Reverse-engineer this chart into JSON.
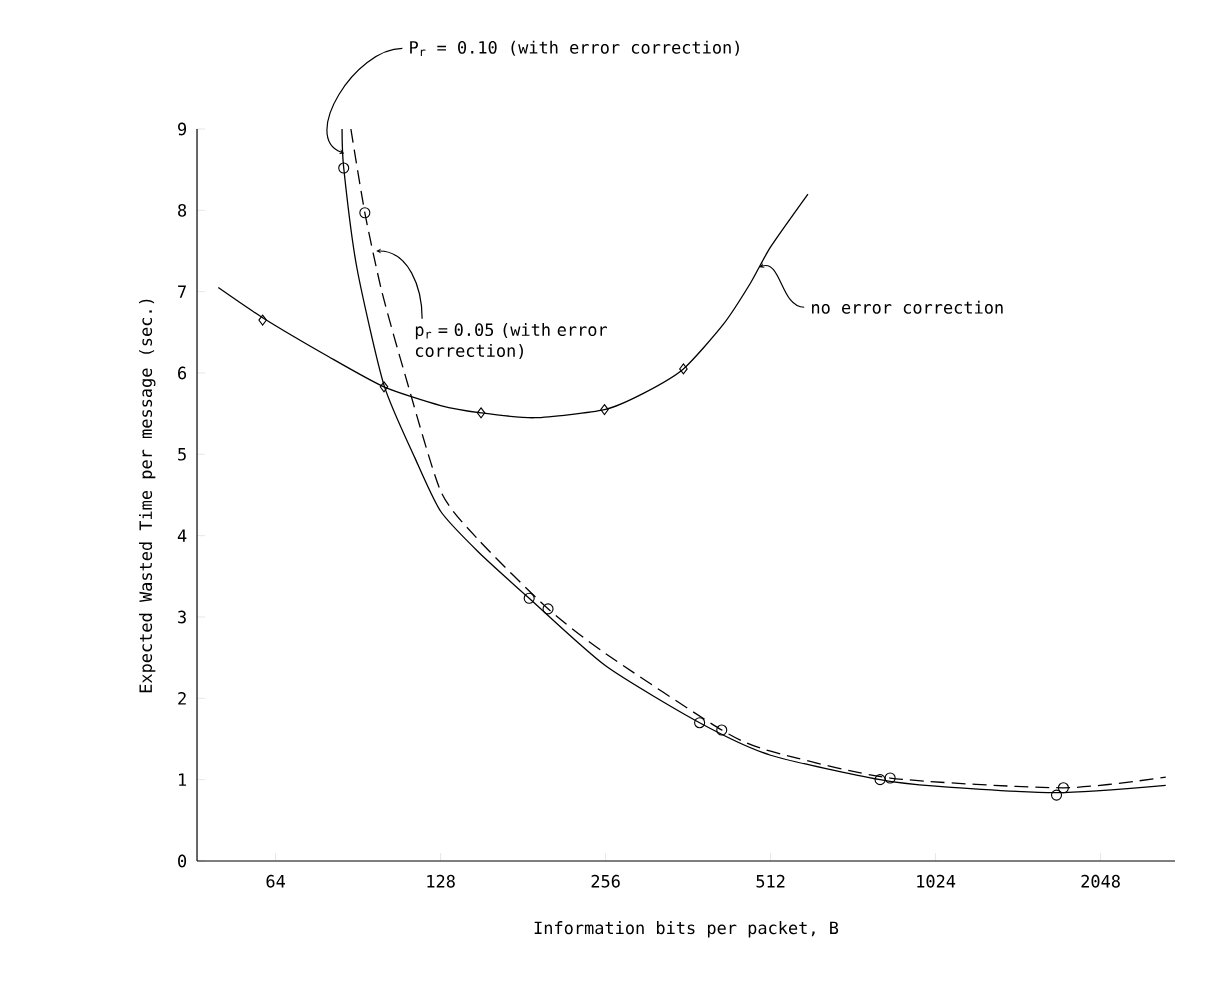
{
  "chart_data": {
    "type": "line",
    "xlabel": "Information bits per packet, B",
    "ylabel": "Expected Wasted Time per message (sec.)",
    "log": "x",
    "xlim": [
      46,
      2800
    ],
    "xticks": [
      64,
      128,
      256,
      512,
      1024,
      2048
    ],
    "ylim": [
      0,
      9
    ],
    "yticks": [
      0,
      1,
      2,
      3,
      4,
      5,
      6,
      7,
      8,
      9
    ],
    "series": [
      {
        "color": "#000000",
        "line_style": "solid",
        "marker": "none",
        "x": [
          50.3,
          60.6,
          80,
          100.9,
          128,
          151.7,
          190,
          254.8,
          300,
          355,
          420,
          470,
          512,
          599
        ],
        "values": [
          7.05,
          6.68,
          6.2,
          5.83,
          5.6,
          5.51,
          5.45,
          5.55,
          5.75,
          6.05,
          6.6,
          7.1,
          7.55,
          8.2
        ]
      },
      {
        "type": "scatter",
        "color": "#000000",
        "marker": "diamond",
        "x": [
          60.6,
          100.9,
          151.7,
          254.8,
          355
        ],
        "values": [
          6.65,
          5.83,
          5.51,
          5.55,
          6.05
        ]
      },
      {
        "color": "#000000",
        "line_style": "solid",
        "marker": "none",
        "x": [
          84.6,
          85.2,
          90,
          100.9,
          115,
          128,
          150,
          185.7,
          256,
          380,
          512,
          811,
          1024,
          1702,
          2693
        ],
        "values": [
          9.0,
          8.52,
          7.3,
          5.85,
          4.95,
          4.3,
          3.8,
          3.23,
          2.4,
          1.7,
          1.3,
          1.0,
          0.92,
          0.84,
          0.93
        ]
      },
      {
        "type": "scatter",
        "color": "#000000",
        "marker": "circle",
        "x": [
          85.2,
          185.7,
          380,
          811,
          1702
        ],
        "values": [
          8.52,
          3.23,
          1.7,
          1.0,
          0.81
        ]
      },
      {
        "color": "#000000",
        "line_style": "dashed",
        "marker": "none",
        "x": [
          87.8,
          93.1,
          100,
          110,
          128,
          150,
          201,
          256,
          417,
          512,
          846,
          1752,
          2693
        ],
        "values": [
          9.0,
          7.97,
          7.0,
          6.0,
          4.55,
          3.95,
          3.1,
          2.55,
          1.61,
          1.35,
          1.02,
          0.9,
          1.03
        ]
      },
      {
        "type": "scatter",
        "color": "#000000",
        "marker": "circle",
        "x": [
          93.1,
          201,
          417,
          846,
          1752
        ],
        "values": [
          7.97,
          3.1,
          1.61,
          1.02,
          0.9
        ]
      }
    ],
    "annotations": [
      {
        "text": "P$_{r}$ = 0.10 (with error correction)",
        "x": 84,
        "y": 8.7
      },
      {
        "text": "p$_{r}$ = 0.05 (with error correction)",
        "x": 96,
        "y": 7.5
      },
      {
        "text": "no error correction",
        "x": 480,
        "y": 7.3
      }
    ]
  }
}
